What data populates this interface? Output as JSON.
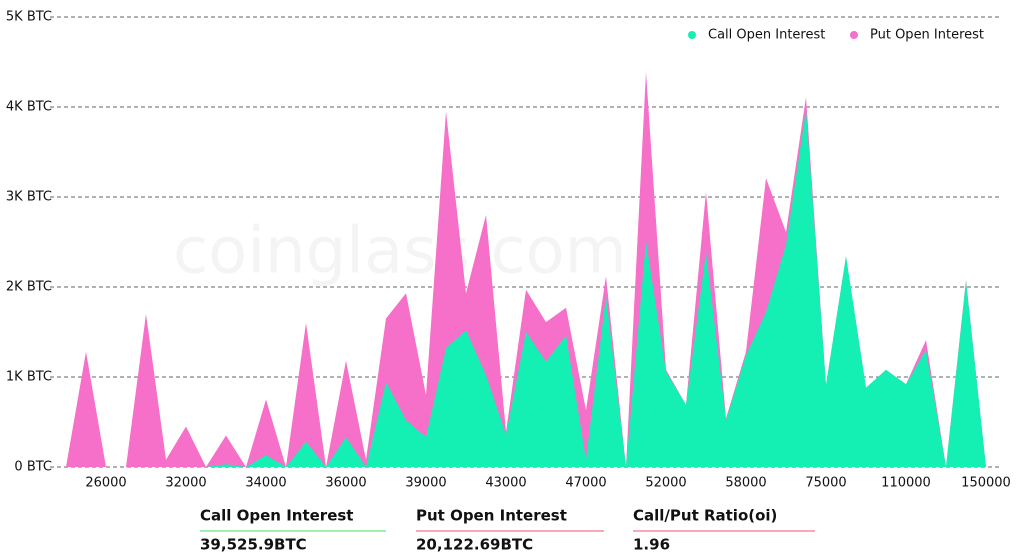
{
  "chart_data": {
    "type": "stacked-area",
    "watermark": "coinglass.com",
    "categories": [
      null,
      null,
      "26000",
      null,
      null,
      null,
      "32000",
      null,
      null,
      null,
      "34000",
      null,
      null,
      null,
      "36000",
      null,
      null,
      null,
      "39000",
      null,
      null,
      null,
      "43000",
      null,
      null,
      null,
      "47000",
      null,
      null,
      null,
      "52000",
      null,
      null,
      null,
      "58000",
      null,
      null,
      null,
      "75000",
      null,
      null,
      null,
      "110000",
      null,
      null,
      null,
      "150000"
    ],
    "series": [
      {
        "name": "Call Open Interest",
        "color": "#14f0b4",
        "values": [
          0,
          0,
          0,
          0,
          0,
          0,
          0,
          0,
          30,
          0,
          130,
          0,
          280,
          0,
          330,
          0,
          940,
          520,
          330,
          1320,
          1520,
          1020,
          360,
          1500,
          1170,
          1460,
          80,
          1900,
          0,
          2510,
          1060,
          690,
          2390,
          520,
          1240,
          1720,
          2470,
          3970,
          910,
          2340,
          880,
          1080,
          920,
          1300,
          0,
          2060,
          0
        ]
      },
      {
        "name": "Put  Open Interest",
        "color": "#f66fc8",
        "values": [
          0,
          1280,
          0,
          0,
          1700,
          80,
          450,
          0,
          320,
          0,
          620,
          0,
          1320,
          0,
          850,
          80,
          710,
          1410,
          470,
          2630,
          410,
          1780,
          30,
          470,
          440,
          310,
          550,
          220,
          0,
          1880,
          20,
          0,
          670,
          20,
          40,
          1490,
          140,
          140,
          0,
          0,
          0,
          0,
          0,
          110,
          0,
          20,
          0
        ]
      }
    ],
    "ylim": [
      0,
      5000
    ],
    "yticks": [
      {
        "value": 0,
        "label": "0 BTC"
      },
      {
        "value": 1000,
        "label": "1K BTC"
      },
      {
        "value": 2000,
        "label": "2K BTC"
      },
      {
        "value": 3000,
        "label": "3K BTC"
      },
      {
        "value": 4000,
        "label": "4K BTC"
      },
      {
        "value": 5000,
        "label": "5K BTC"
      }
    ],
    "grid": true,
    "legend": "top-right"
  },
  "summary": [
    {
      "label": "Call Open Interest",
      "value": "39,525.9BTC",
      "color": "#3ee05a"
    },
    {
      "label": "Put Open Interest",
      "value": "20,122.69BTC",
      "color": "#f0506e"
    },
    {
      "label": "Call/Put Ratio(oi)",
      "value": "1.96",
      "color": "#f0506e"
    }
  ]
}
